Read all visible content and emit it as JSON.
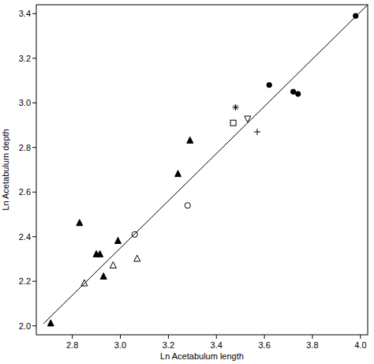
{
  "chart_data": {
    "type": "scatter",
    "x_label": "Ln Acetabulum length",
    "y_label": "Ln Acetabulum depth",
    "xlim": [
      2.65,
      4.03
    ],
    "ylim": [
      1.96,
      3.44
    ],
    "xticks": [
      {
        "value": 2.8,
        "label": "2.8"
      },
      {
        "value": 3.0,
        "label": "3.0"
      },
      {
        "value": 3.2,
        "label": "3.2"
      },
      {
        "value": 3.4,
        "label": "3.4"
      },
      {
        "value": 3.6,
        "label": "3.6"
      },
      {
        "value": 3.8,
        "label": "3.8"
      },
      {
        "value": 4.0,
        "label": "4.0"
      }
    ],
    "yticks": [
      {
        "value": 2.0,
        "label": "2.0"
      },
      {
        "value": 2.2,
        "label": "2.2"
      },
      {
        "value": 2.4,
        "label": "2.4"
      },
      {
        "value": 2.6,
        "label": "2.6"
      },
      {
        "value": 2.8,
        "label": "2.8"
      },
      {
        "value": 3.0,
        "label": "3.0"
      },
      {
        "value": 3.2,
        "label": "3.2"
      },
      {
        "value": 3.4,
        "label": "3.4"
      }
    ],
    "grid": false,
    "series": [
      {
        "marker": "triangle-filled",
        "color": "#000000",
        "x": [
          2.71,
          2.83,
          2.9,
          2.915,
          2.93,
          2.99,
          3.24,
          3.29
        ],
        "values": [
          2.01,
          2.46,
          2.32,
          2.32,
          2.22,
          2.38,
          2.68,
          2.83
        ]
      },
      {
        "marker": "triangle-open",
        "color": "#000000",
        "x": [
          2.85,
          2.97,
          3.07
        ],
        "values": [
          2.19,
          2.27,
          2.3
        ]
      },
      {
        "marker": "circle-open",
        "color": "#000000",
        "x": [
          3.06,
          3.28
        ],
        "values": [
          2.41,
          2.54
        ]
      },
      {
        "marker": "square-open",
        "color": "#000000",
        "x": [
          3.47
        ],
        "values": [
          2.91
        ]
      },
      {
        "marker": "asterisk",
        "color": "#000000",
        "x": [
          3.48
        ],
        "values": [
          2.98
        ]
      },
      {
        "marker": "triangle-down-open",
        "color": "#000000",
        "x": [
          3.53
        ],
        "values": [
          2.93
        ]
      },
      {
        "marker": "plus",
        "color": "#000000",
        "x": [
          3.57
        ],
        "values": [
          2.87
        ]
      },
      {
        "marker": "circle-filled",
        "color": "#000000",
        "x": [
          3.62,
          3.72,
          3.74,
          3.98
        ],
        "values": [
          3.08,
          3.05,
          3.04,
          3.39
        ]
      },
      {
        "type": "line",
        "line_style": "solid",
        "color": "#000000",
        "x": [
          2.68,
          4.03
        ],
        "values": [
          2.01,
          3.44
        ]
      }
    ]
  }
}
